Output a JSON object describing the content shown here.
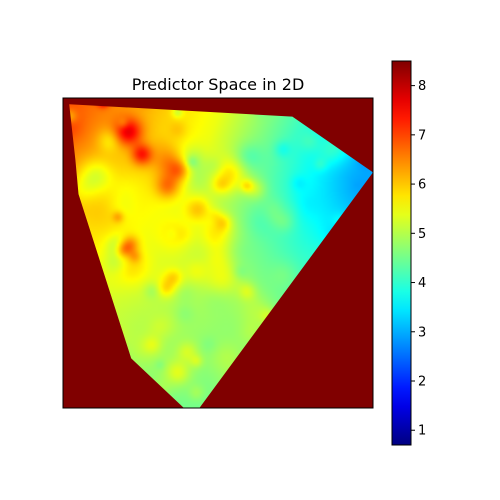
{
  "chart_data": {
    "type": "heatmap",
    "title": "Predictor Space in 2D",
    "xlabel": "",
    "ylabel": "",
    "x_ticks_visible": false,
    "y_ticks_visible": false,
    "grid": false,
    "colormap": "jet",
    "background_value": 8.5,
    "colorbar": {
      "range": [
        0.7,
        8.5
      ],
      "ticks": [
        1,
        2,
        3,
        4,
        5,
        6,
        7,
        8
      ],
      "tick_labels": [
        "1",
        "2",
        "3",
        "4",
        "5",
        "6",
        "7",
        "8"
      ],
      "placement": "right"
    },
    "region": {
      "shape": "convex hull of 2D predictor points; outside filled with max value",
      "vertices_frac": [
        [
          0.02,
          0.02
        ],
        [
          0.74,
          0.06
        ],
        [
          1.0,
          0.24
        ],
        [
          0.44,
          1.0
        ],
        [
          0.39,
          1.0
        ],
        [
          0.22,
          0.84
        ],
        [
          0.05,
          0.31
        ],
        [
          0.04,
          0.2
        ]
      ]
    },
    "value_gradient": {
      "top_left": 7.0,
      "top_right": 4.0,
      "right_point": 2.9,
      "bottom_left": 4.6,
      "bottom": 4.4,
      "center": 4.5
    }
  }
}
